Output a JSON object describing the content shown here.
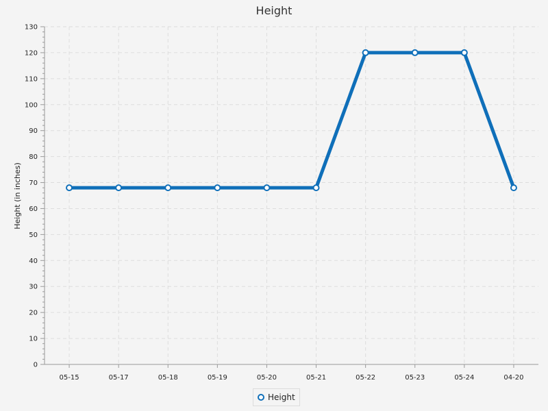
{
  "colors": {
    "series": "#0f6fb9",
    "grid": "#dddddd",
    "axis": "#999999",
    "background": "#f4f4f4"
  },
  "chart_data": {
    "type": "line",
    "title": "Height",
    "xlabel": "",
    "ylabel": "Height (in inches)",
    "categories": [
      "05-15",
      "05-17",
      "05-18",
      "05-19",
      "05-20",
      "05-21",
      "05-22",
      "05-23",
      "05-24",
      "04-20"
    ],
    "series": [
      {
        "name": "Height",
        "values": [
          68,
          68,
          68,
          68,
          68,
          68,
          120,
          120,
          120,
          68
        ]
      }
    ],
    "ylim": [
      0,
      130
    ],
    "ytick_step": 10,
    "grid": true,
    "legend": "bottom-center"
  }
}
